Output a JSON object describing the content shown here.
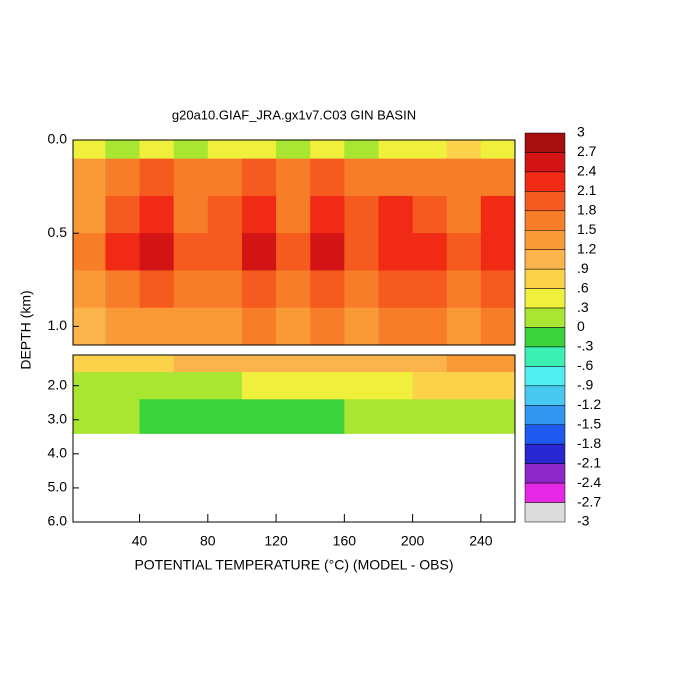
{
  "chart_data": {
    "type": "contour",
    "title": "g20a10.GIAF_JRA.gx1v7.C03 GIN BASIN",
    "x_label": "POTENTIAL TEMPERATURE (°C) (MODEL - OBS)",
    "y_label": "DEPTH (km)",
    "xlim": [
      1,
      260
    ],
    "xticks": [
      40,
      80,
      120,
      160,
      200,
      240
    ],
    "x_edges": [
      1,
      20,
      40,
      60,
      80,
      100,
      120,
      140,
      160,
      180,
      200,
      220,
      240,
      260
    ],
    "panels": [
      {
        "ylim": [
          0,
          1.1
        ],
        "yticks": [
          {
            "value": 0,
            "label": "0.0"
          },
          {
            "value": 0.5,
            "label": "0.5"
          },
          {
            "value": 1,
            "label": "1.0"
          }
        ],
        "depth_edges": [
          0,
          0.1,
          0.3,
          0.5,
          0.7,
          0.9,
          1.1
        ],
        "values": [
          [
            0.3,
            0.0,
            0.4,
            0.2,
            0.5,
            0.3,
            0.1,
            0.5,
            0.2,
            0.4,
            0.3,
            0.6,
            0.4
          ],
          [
            1.2,
            1.5,
            1.8,
            1.5,
            1.6,
            1.8,
            1.5,
            1.8,
            1.5,
            1.7,
            1.6,
            1.5,
            1.7
          ],
          [
            1.4,
            2.0,
            2.3,
            1.7,
            1.8,
            2.2,
            1.7,
            2.2,
            1.8,
            2.2,
            2.0,
            1.7,
            2.1
          ],
          [
            1.5,
            2.1,
            2.5,
            1.8,
            1.9,
            2.4,
            1.8,
            2.4,
            1.9,
            2.3,
            2.2,
            1.8,
            2.3
          ],
          [
            1.3,
            1.6,
            1.9,
            1.6,
            1.7,
            1.9,
            1.6,
            2.0,
            1.7,
            1.9,
            1.8,
            1.6,
            1.9
          ],
          [
            0.9,
            1.3,
            1.4,
            1.4,
            1.4,
            1.5,
            1.3,
            1.5,
            1.4,
            1.5,
            1.5,
            1.4,
            1.5
          ]
        ]
      },
      {
        "ylim": [
          1.1,
          6
        ],
        "yticks": [
          {
            "value": 2,
            "label": "2.0"
          },
          {
            "value": 3,
            "label": "3.0"
          },
          {
            "value": 4,
            "label": "4.0"
          },
          {
            "value": 5,
            "label": "5.0"
          },
          {
            "value": 6,
            "label": "6.0"
          }
        ],
        "depth_edges": [
          1.1,
          1.6,
          2.4,
          3.4
        ],
        "values": [
          [
            0.6,
            0.7,
            0.8,
            0.9,
            0.9,
            1.0,
            1.1,
            1.1,
            1.1,
            1.0,
            1.1,
            1.2,
            1.2
          ],
          [
            0.1,
            0.0,
            0.1,
            0.2,
            0.2,
            0.3,
            0.3,
            0.4,
            0.5,
            0.5,
            0.6,
            0.6,
            0.7
          ],
          [
            0.1,
            0.0,
            -0.1,
            -0.2,
            -0.2,
            -0.2,
            -0.2,
            -0.1,
            0.0,
            0.0,
            0.1,
            0.1,
            0.2
          ]
        ]
      }
    ],
    "colorbar": {
      "ticks": [
        3,
        2.7,
        2.4,
        2.1,
        1.8,
        1.5,
        1.2,
        {
          "value": 0.9,
          "label": ".9"
        },
        {
          "value": 0.6,
          "label": ".6"
        },
        {
          "value": 0.3,
          "label": ".3"
        },
        0,
        {
          "value": -0.3,
          "label": "-.3"
        },
        {
          "value": -0.6,
          "label": "-.6"
        },
        {
          "value": -0.9,
          "label": "-.9"
        },
        -1.2,
        -1.5,
        -1.8,
        -2.1,
        -2.4,
        -2.7,
        -3
      ],
      "colors": [
        "#a50f0f",
        "#d21414",
        "#f02a14",
        "#f55a1e",
        "#f77d28",
        "#f99a37",
        "#fbb44b",
        "#fcd24b",
        "#f0f03c",
        "#a8e632",
        "#3cd23c",
        "#3cf0b4",
        "#50f0f0",
        "#46c8f0",
        "#3296f0",
        "#1e5af0",
        "#2828d2",
        "#8c28c8",
        "#e628e6",
        "#dcdcdc",
        "#787878"
      ]
    }
  }
}
